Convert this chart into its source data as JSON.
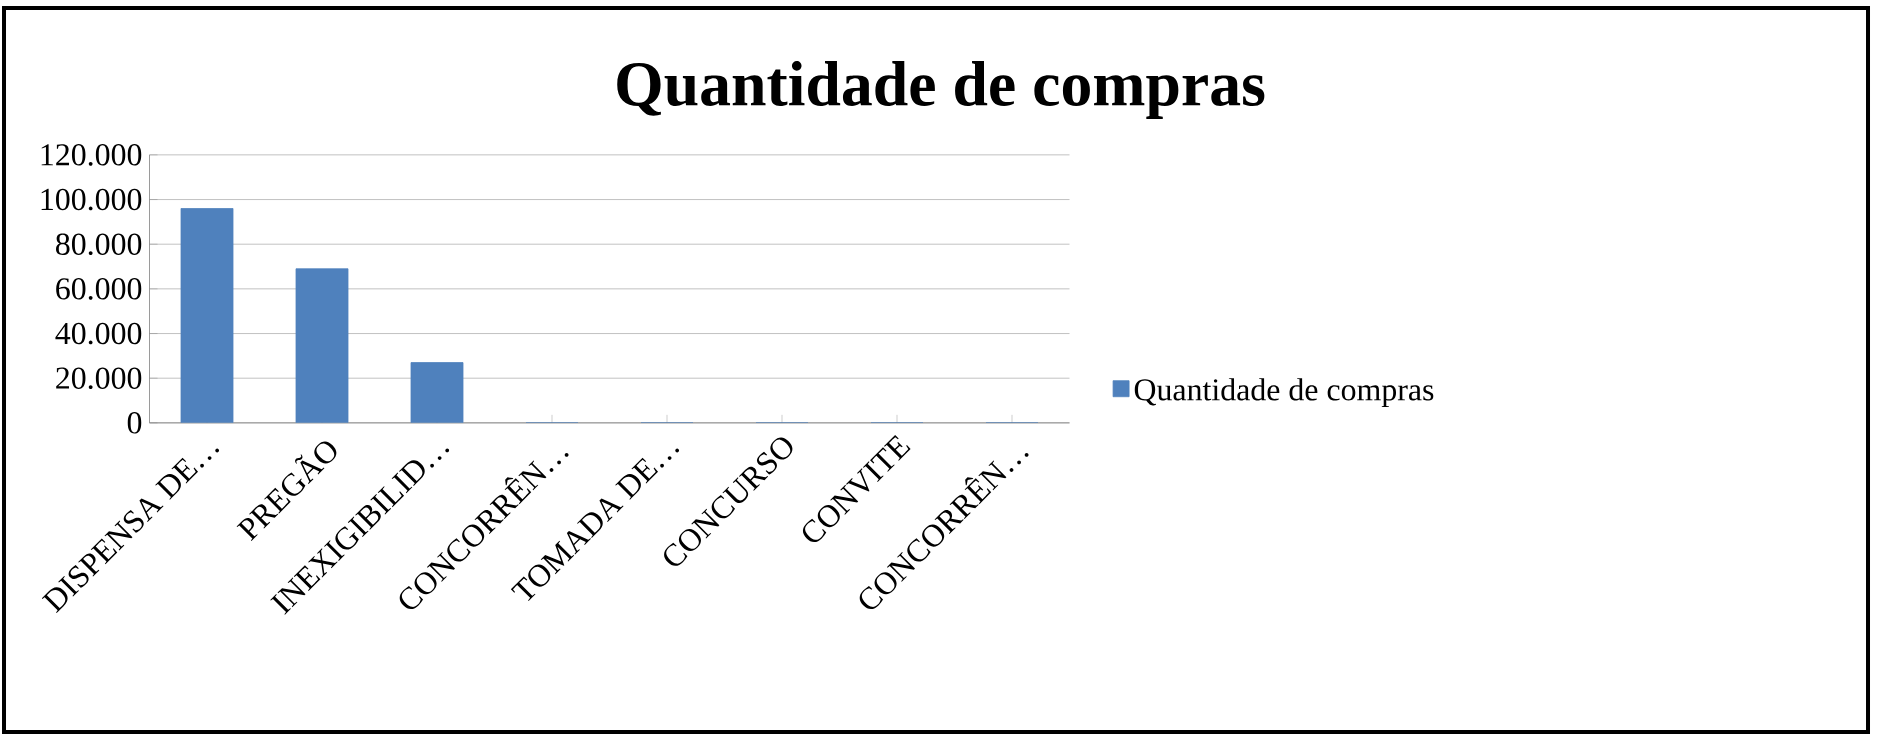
{
  "chart_data": {
    "type": "bar",
    "title": "Quantidade de compras",
    "categories": [
      "DISPENSA DE…",
      "PREGÃO",
      "INEXIGIBILID…",
      "CONCORRÊN…",
      "TOMADA DE…",
      "CONCURSO",
      "CONVITE",
      "CONCORRÊN…"
    ],
    "series": [
      {
        "name": "Quantidade de compras",
        "color": "#4f81bd",
        "values": [
          96000,
          69000,
          27000,
          0,
          0,
          0,
          0,
          0
        ]
      }
    ],
    "ylim": [
      0,
      120000
    ],
    "yticks": [
      {
        "value": 0,
        "label": "0"
      },
      {
        "value": 20000,
        "label": "20.000"
      },
      {
        "value": 40000,
        "label": "40.000"
      },
      {
        "value": 60000,
        "label": "60.000"
      },
      {
        "value": 80000,
        "label": "80.000"
      },
      {
        "value": 100000,
        "label": "100.000"
      },
      {
        "value": 120000,
        "label": "120.000"
      }
    ],
    "grid": "y",
    "legend": "right"
  }
}
